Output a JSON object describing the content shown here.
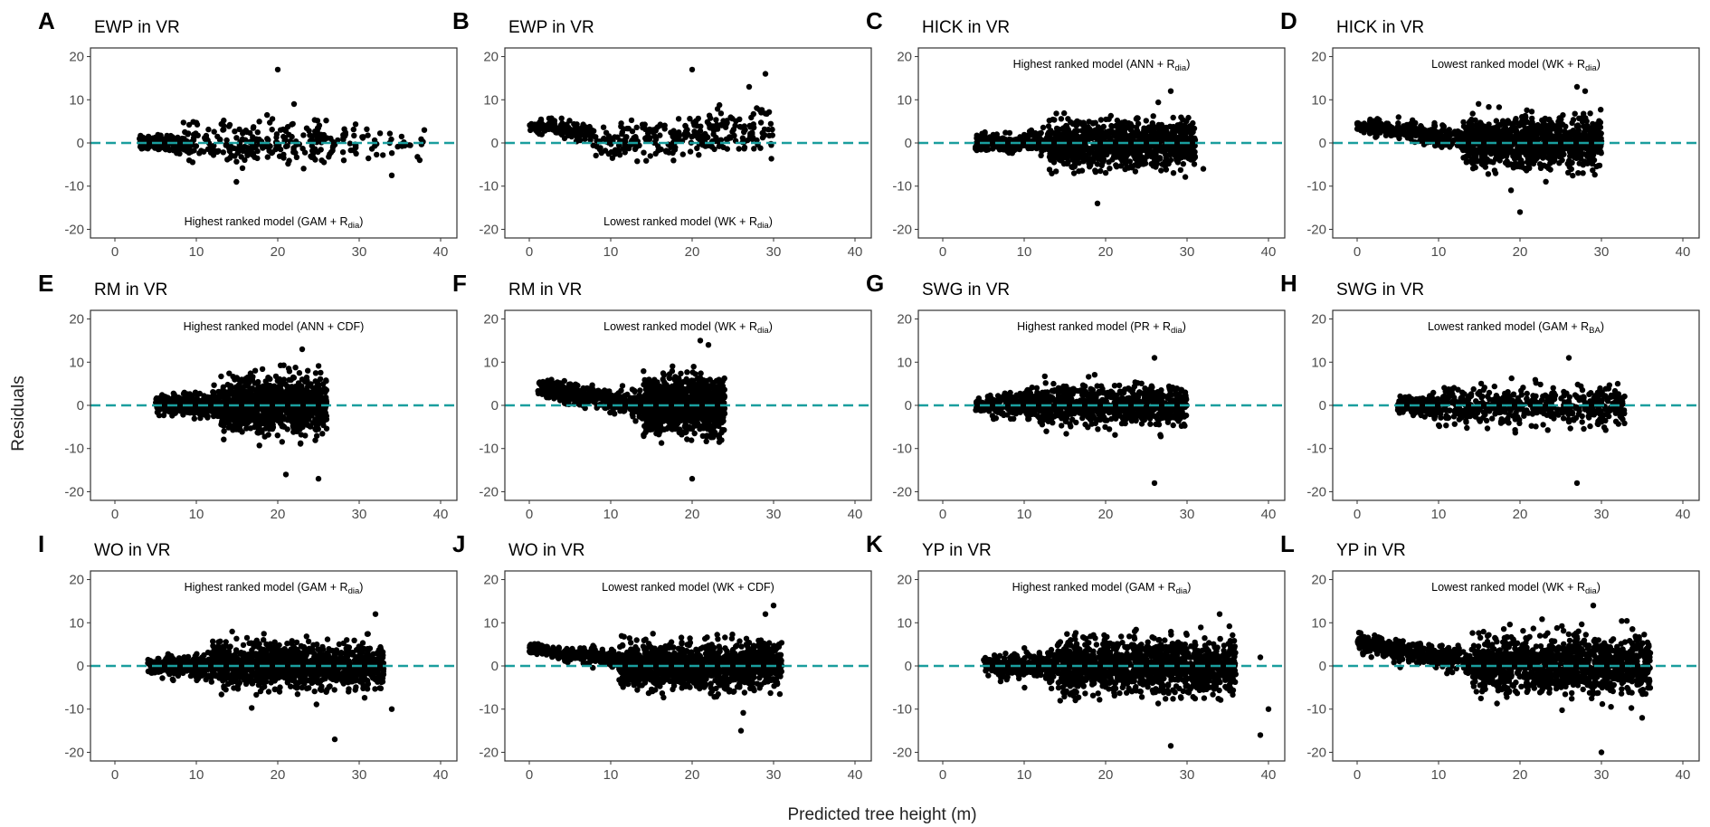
{
  "figure": {
    "shared_xlabel": "Predicted tree height (m)",
    "shared_ylabel": "Residuals"
  },
  "colors": {
    "points": "#000000",
    "reference_line": "#1a9e9e",
    "panel_border": "#333333"
  },
  "chart_data": [
    {
      "panel": "A",
      "title": "EWP in VR",
      "type": "scatter",
      "annotation": {
        "text": "Highest ranked model (GAM + R",
        "sub": "dia",
        "close": ")",
        "position": "bottom"
      },
      "xlim": [
        -3,
        42
      ],
      "ylim": [
        -22,
        22
      ],
      "xticks": [
        0,
        10,
        20,
        30,
        40
      ],
      "yticks": [
        -20,
        -10,
        0,
        10,
        20
      ],
      "reference_line_y": 0,
      "n_points": 450,
      "cloud": [
        {
          "x_range": [
            3,
            9
          ],
          "n": 160,
          "center": 0,
          "spread_start": 1,
          "spread_end": 2
        },
        {
          "x_range": [
            9,
            30
          ],
          "n": 260,
          "center": 0,
          "spread_start": 3,
          "spread_end": 4
        },
        {
          "x_range": [
            30,
            38
          ],
          "n": 30,
          "center": 0,
          "spread_start": 3.5,
          "spread_end": 3
        }
      ],
      "outliers": [
        [
          20,
          17
        ],
        [
          34,
          -7.5
        ],
        [
          38,
          3
        ],
        [
          22,
          9
        ]
      ]
    },
    {
      "panel": "B",
      "title": "EWP in VR",
      "type": "scatter",
      "annotation": {
        "text": "Lowest ranked model (WK + R",
        "sub": "dia",
        "close": ")",
        "position": "bottom"
      },
      "xlim": [
        -3,
        42
      ],
      "ylim": [
        -22,
        22
      ],
      "xticks": [
        0,
        10,
        20,
        30,
        40
      ],
      "yticks": [
        -20,
        -10,
        0,
        10,
        20
      ],
      "reference_line_y": 0,
      "n_points": 450,
      "cloud": [
        {
          "x_range": [
            0,
            8
          ],
          "n": 170,
          "center_start": 4,
          "center_end": 2.5,
          "spread_start": 1,
          "spread_end": 1.5
        },
        {
          "x_range": [
            8,
            30
          ],
          "n": 280,
          "center_start": 0,
          "center_end": 3,
          "spread_start": 2.5,
          "spread_end": 4.5
        }
      ],
      "outliers": [
        [
          20,
          17
        ],
        [
          29,
          16
        ],
        [
          27,
          13
        ]
      ]
    },
    {
      "panel": "C",
      "title": "HICK in VR",
      "type": "scatter",
      "annotation": {
        "text": "Highest ranked model (ANN + R",
        "sub": "dia",
        "close": ")",
        "position": "top"
      },
      "xlim": [
        -3,
        42
      ],
      "ylim": [
        -22,
        22
      ],
      "xticks": [
        0,
        10,
        20,
        30,
        40
      ],
      "yticks": [
        -20,
        -10,
        0,
        10,
        20
      ],
      "reference_line_y": 0,
      "n_points": 1300,
      "cloud": [
        {
          "x_range": [
            4,
            13
          ],
          "n": 300,
          "center": 0,
          "spread_start": 1.2,
          "spread_end": 1.8
        },
        {
          "x_range": [
            13,
            31
          ],
          "n": 1000,
          "center": 0,
          "spread_start": 3.8,
          "spread_end": 3.8
        }
      ],
      "outliers": [
        [
          28,
          12
        ],
        [
          19,
          -14
        ],
        [
          32,
          -6
        ]
      ]
    },
    {
      "panel": "D",
      "title": "HICK in VR",
      "type": "scatter",
      "annotation": {
        "text": "Lowest ranked model (WK + R",
        "sub": "dia",
        "close": ")",
        "position": "top"
      },
      "xlim": [
        -3,
        42
      ],
      "ylim": [
        -22,
        22
      ],
      "xticks": [
        0,
        10,
        20,
        30,
        40
      ],
      "yticks": [
        -20,
        -10,
        0,
        10,
        20
      ],
      "reference_line_y": 0,
      "n_points": 1300,
      "cloud": [
        {
          "x_range": [
            0,
            13
          ],
          "n": 300,
          "center_start": 4,
          "center_end": 1,
          "spread_start": 1.2,
          "spread_end": 1.8
        },
        {
          "x_range": [
            13,
            30
          ],
          "n": 1000,
          "center": 0,
          "spread_start": 4,
          "spread_end": 4.2
        }
      ],
      "outliers": [
        [
          20,
          -16
        ],
        [
          28,
          12
        ],
        [
          27,
          13
        ]
      ]
    },
    {
      "panel": "E",
      "title": "RM in VR",
      "type": "scatter",
      "annotation": {
        "text": "Highest ranked model (ANN + CDF)",
        "sub": "",
        "close": "",
        "position": "top"
      },
      "xlim": [
        -3,
        42
      ],
      "ylim": [
        -22,
        22
      ],
      "xticks": [
        0,
        10,
        20,
        30,
        40
      ],
      "yticks": [
        -20,
        -10,
        0,
        10,
        20
      ],
      "reference_line_y": 0,
      "n_points": 1600,
      "cloud": [
        {
          "x_range": [
            5,
            13
          ],
          "n": 400,
          "center": 0,
          "spread_start": 1.5,
          "spread_end": 2
        },
        {
          "x_range": [
            13,
            26
          ],
          "n": 1200,
          "center": 0,
          "spread_start": 4,
          "spread_end": 4.5
        }
      ],
      "outliers": [
        [
          25,
          -17
        ],
        [
          23,
          13
        ],
        [
          21,
          -16
        ]
      ]
    },
    {
      "panel": "F",
      "title": "RM in VR",
      "type": "scatter",
      "annotation": {
        "text": "Lowest ranked model (WK + R",
        "sub": "dia",
        "close": ")",
        "position": "top"
      },
      "xlim": [
        -3,
        42
      ],
      "ylim": [
        -22,
        22
      ],
      "xticks": [
        0,
        10,
        20,
        30,
        40
      ],
      "yticks": [
        -20,
        -10,
        0,
        10,
        20
      ],
      "reference_line_y": 0,
      "n_points": 1600,
      "cloud": [
        {
          "x_range": [
            1,
            14
          ],
          "n": 500,
          "center_start": 4,
          "center_end": 0,
          "spread_start": 1.3,
          "spread_end": 2
        },
        {
          "x_range": [
            14,
            24
          ],
          "n": 1100,
          "center": 0,
          "spread_start": 4.5,
          "spread_end": 4.5
        }
      ],
      "outliers": [
        [
          20,
          -17
        ],
        [
          22,
          14
        ],
        [
          21,
          15
        ]
      ]
    },
    {
      "panel": "G",
      "title": "SWG in VR",
      "type": "scatter",
      "annotation": {
        "text": "Highest ranked model (PR + R",
        "sub": "dia",
        "close": ")",
        "position": "top"
      },
      "xlim": [
        -3,
        42
      ],
      "ylim": [
        -22,
        22
      ],
      "xticks": [
        0,
        10,
        20,
        30,
        40
      ],
      "yticks": [
        -20,
        -10,
        0,
        10,
        20
      ],
      "reference_line_y": 0,
      "n_points": 1000,
      "cloud": [
        {
          "x_range": [
            4,
            10
          ],
          "n": 200,
          "center": 0,
          "spread_start": 1,
          "spread_end": 2
        },
        {
          "x_range": [
            10,
            30
          ],
          "n": 800,
          "center": 0,
          "spread_start": 3,
          "spread_end": 3.3
        }
      ],
      "outliers": [
        [
          26,
          -18
        ],
        [
          26,
          11
        ]
      ]
    },
    {
      "panel": "H",
      "title": "SWG in VR",
      "type": "scatter",
      "annotation": {
        "text": "Lowest ranked model (GAM + R",
        "sub": "BA",
        "close": ")",
        "position": "top"
      },
      "xlim": [
        -3,
        42
      ],
      "ylim": [
        -22,
        22
      ],
      "xticks": [
        0,
        10,
        20,
        30,
        40
      ],
      "yticks": [
        -20,
        -10,
        0,
        10,
        20
      ],
      "reference_line_y": 0,
      "n_points": 700,
      "cloud": [
        {
          "x_range": [
            5,
            10
          ],
          "n": 170,
          "center": 0,
          "spread_start": 1.3,
          "spread_end": 1.8
        },
        {
          "x_range": [
            10,
            33
          ],
          "n": 530,
          "center": 0,
          "spread_start": 3,
          "spread_end": 3.5
        }
      ],
      "outliers": [
        [
          27,
          -18
        ],
        [
          26,
          11
        ],
        [
          32,
          5
        ]
      ]
    },
    {
      "panel": "I",
      "title": "WO in VR",
      "type": "scatter",
      "annotation": {
        "text": "Highest ranked model (GAM + R",
        "sub": "dia",
        "close": ")",
        "position": "top"
      },
      "xlim": [
        -3,
        42
      ],
      "ylim": [
        -22,
        22
      ],
      "xticks": [
        0,
        10,
        20,
        30,
        40
      ],
      "yticks": [
        -20,
        -10,
        0,
        10,
        20
      ],
      "reference_line_y": 0,
      "n_points": 1500,
      "cloud": [
        {
          "x_range": [
            4,
            12
          ],
          "n": 250,
          "center": 0,
          "spread_start": 1.3,
          "spread_end": 2.2
        },
        {
          "x_range": [
            12,
            33
          ],
          "n": 1250,
          "center": 0,
          "spread_start": 3.5,
          "spread_end": 3.6
        }
      ],
      "outliers": [
        [
          27,
          -17
        ],
        [
          34,
          -10
        ],
        [
          32,
          12
        ]
      ]
    },
    {
      "panel": "J",
      "title": "WO in VR",
      "type": "scatter",
      "annotation": {
        "text": "Lowest ranked model (WK + CDF)",
        "sub": "",
        "close": "",
        "position": "top"
      },
      "xlim": [
        -3,
        42
      ],
      "ylim": [
        -22,
        22
      ],
      "xticks": [
        0,
        10,
        20,
        30,
        40
      ],
      "yticks": [
        -20,
        -10,
        0,
        10,
        20
      ],
      "reference_line_y": 0,
      "n_points": 1500,
      "cloud": [
        {
          "x_range": [
            0,
            11
          ],
          "n": 250,
          "center_start": 4,
          "center_end": 1.5,
          "spread_start": 1,
          "spread_end": 1.6
        },
        {
          "x_range": [
            11,
            31
          ],
          "n": 1250,
          "center": 0,
          "spread_start": 3.6,
          "spread_end": 3.8
        }
      ],
      "outliers": [
        [
          26,
          -15
        ],
        [
          30,
          14
        ],
        [
          29,
          12
        ]
      ]
    },
    {
      "panel": "K",
      "title": "YP in VR",
      "type": "scatter",
      "annotation": {
        "text": "Highest ranked model (GAM + R",
        "sub": "dia",
        "close": ")",
        "position": "top"
      },
      "xlim": [
        -3,
        42
      ],
      "ylim": [
        -22,
        22
      ],
      "xticks": [
        0,
        10,
        20,
        30,
        40
      ],
      "yticks": [
        -20,
        -10,
        0,
        10,
        20
      ],
      "reference_line_y": 0,
      "n_points": 1600,
      "cloud": [
        {
          "x_range": [
            5,
            14
          ],
          "n": 300,
          "center": 0,
          "spread_start": 1.3,
          "spread_end": 2.5
        },
        {
          "x_range": [
            14,
            36
          ],
          "n": 1300,
          "center": 0,
          "spread_start": 4.5,
          "spread_end": 4.5
        }
      ],
      "outliers": [
        [
          28,
          -18.5
        ],
        [
          39,
          -16
        ],
        [
          40,
          -10
        ],
        [
          34,
          12
        ],
        [
          39,
          2
        ]
      ]
    },
    {
      "panel": "L",
      "title": "YP in VR",
      "type": "scatter",
      "annotation": {
        "text": "Lowest ranked model (WK + R",
        "sub": "dia",
        "close": ")",
        "position": "top"
      },
      "xlim": [
        -3,
        42
      ],
      "ylim": [
        -22,
        22
      ],
      "xticks": [
        0,
        10,
        20,
        30,
        40
      ],
      "yticks": [
        -20,
        -10,
        0,
        10,
        20
      ],
      "reference_line_y": 0,
      "n_points": 1600,
      "cloud": [
        {
          "x_range": [
            0,
            14
          ],
          "n": 400,
          "center_start": 5.5,
          "center_end": 1,
          "spread_start": 1.5,
          "spread_end": 2
        },
        {
          "x_range": [
            14,
            36
          ],
          "n": 1200,
          "center": 0,
          "spread_start": 4.8,
          "spread_end": 4.8
        }
      ],
      "outliers": [
        [
          30,
          -20
        ],
        [
          29,
          14
        ],
        [
          35,
          -12
        ],
        [
          36,
          3
        ]
      ]
    }
  ]
}
